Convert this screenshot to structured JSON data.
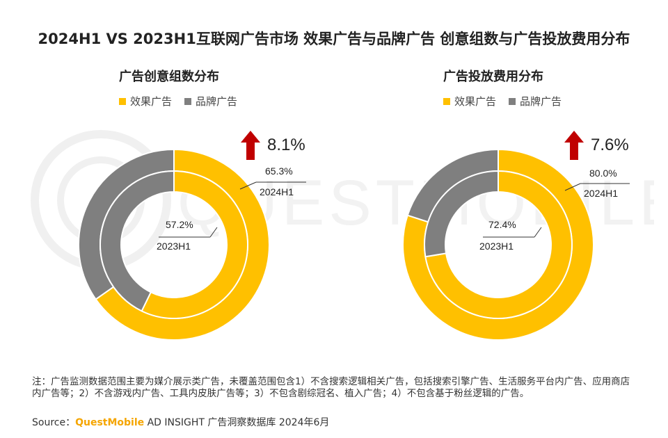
{
  "title": "2024H1 VS 2023H1互联网广告市场 效果广告与品牌广告 创意组数与广告投放费用分布",
  "colors": {
    "effect": "#ffc000",
    "brand": "#7f7f7f",
    "arrow": "#c00000",
    "separator": "#ffffff",
    "label_line": "#333333"
  },
  "legend": {
    "effect": "效果广告",
    "brand": "品牌广告"
  },
  "chart_data": [
    {
      "type": "donut",
      "title": "广告创意组数分布",
      "growth": "8.1%",
      "series": [
        {
          "ring": "outer",
          "period": "2024H1",
          "values": {
            "效果广告": 65.3,
            "品牌广告": 34.7
          },
          "label_value": "65.3%",
          "label_period": "2024H1"
        },
        {
          "ring": "inner",
          "period": "2023H1",
          "values": {
            "效果广告": 57.2,
            "品牌广告": 42.8
          },
          "label_value": "57.2%",
          "label_period": "2023H1"
        }
      ]
    },
    {
      "type": "donut",
      "title": "广告投放费用分布",
      "growth": "7.6%",
      "series": [
        {
          "ring": "outer",
          "period": "2024H1",
          "values": {
            "效果广告": 80.0,
            "品牌广告": 20.0
          },
          "label_value": "80.0%",
          "label_period": "2024H1"
        },
        {
          "ring": "inner",
          "period": "2023H1",
          "values": {
            "效果广告": 72.4,
            "品牌广告": 27.6
          },
          "label_value": "72.4%",
          "label_period": "2023H1"
        }
      ]
    }
  ],
  "footnote": "注：广告监测数据范围主要为媒介展示类广告，未覆盖范围包含1）不含搜索逻辑相关广告，包括搜索引擎广告、生活服务平台内广告、应用商店内广告等；2）不含游戏内广告、工具内皮肤广告等；3）不包含剧综冠名、植入广告；4）不包含基于粉丝逻辑的广告。",
  "source": {
    "label": "Source：",
    "brand": "QuestMobile",
    "rest": " AD INSIGHT 广告洞察数据库 2024年6月"
  },
  "watermark": "QUESTMOBILE"
}
